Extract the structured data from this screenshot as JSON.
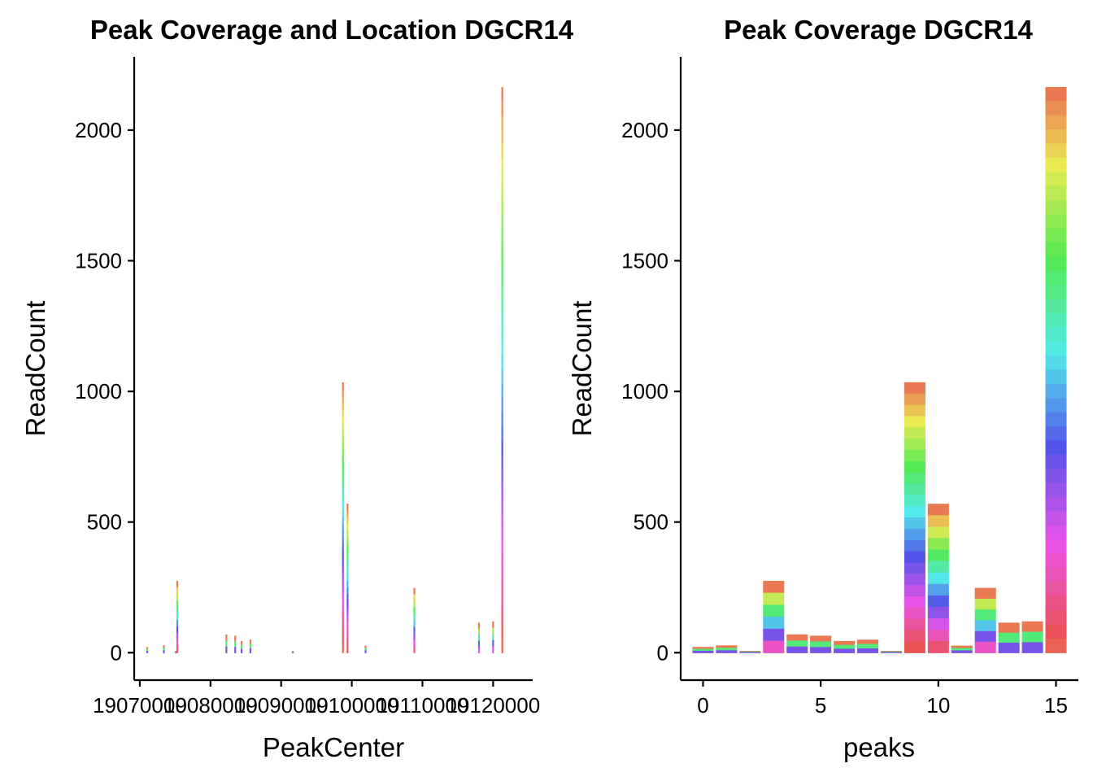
{
  "chart_data": [
    {
      "type": "bar",
      "title": "Peak Coverage and Location DGCR14",
      "xlabel": "PeakCenter",
      "ylabel": "ReadCount",
      "xlim": [
        19069200,
        19125600
      ],
      "ylim": [
        -105,
        2280
      ],
      "x_ticks": [
        19070000,
        19080000,
        19090000,
        19100000,
        19110000,
        19120000
      ],
      "x_tick_labels": [
        "19070000",
        "19080000",
        "19090000",
        "19100000",
        "19110000",
        "19120000"
      ],
      "y_ticks": [
        0,
        500,
        1000,
        1500,
        2000
      ],
      "y_tick_labels": [
        "0",
        "500",
        "1000",
        "1500",
        "2000"
      ],
      "bar_width": 250,
      "bars": [
        {
          "peak": 0,
          "x": 19071050,
          "value": 22
        },
        {
          "peak": 1,
          "x": 19073400,
          "value": 28
        },
        {
          "peak": 2,
          "x": 19075100,
          "value": 7
        },
        {
          "peak": 3,
          "x": 19075300,
          "value": 275
        },
        {
          "peak": 4,
          "x": 19082250,
          "value": 70
        },
        {
          "peak": 5,
          "x": 19083500,
          "value": 65
        },
        {
          "peak": 6,
          "x": 19084400,
          "value": 45
        },
        {
          "peak": 7,
          "x": 19085650,
          "value": 50
        },
        {
          "peak": 8,
          "x": 19091650,
          "value": 7
        },
        {
          "peak": 9,
          "x": 19098750,
          "value": 1035
        },
        {
          "peak": 10,
          "x": 19099400,
          "value": 570
        },
        {
          "peak": 11,
          "x": 19101950,
          "value": 27
        },
        {
          "peak": 12,
          "x": 19108850,
          "value": 248
        },
        {
          "peak": 13,
          "x": 19118000,
          "value": 115
        },
        {
          "peak": 14,
          "x": 19120000,
          "value": 120
        },
        {
          "peak": 15,
          "x": 19121300,
          "value": 2165
        }
      ],
      "legend": "none",
      "grid": false
    },
    {
      "type": "bar",
      "title": "Peak Coverage DGCR14",
      "xlabel": "peaks",
      "ylabel": "ReadCount",
      "xlim": [
        -0.95,
        15.95
      ],
      "ylim": [
        -105,
        2280
      ],
      "x_ticks": [
        0,
        5,
        10,
        15
      ],
      "x_tick_labels": [
        "0",
        "5",
        "10",
        "15"
      ],
      "y_ticks": [
        0,
        500,
        1000,
        1500,
        2000
      ],
      "y_tick_labels": [
        "0",
        "500",
        "1000",
        "1500",
        "2000"
      ],
      "categories": [
        0,
        1,
        2,
        3,
        4,
        5,
        6,
        7,
        8,
        9,
        10,
        11,
        12,
        13,
        14,
        15
      ],
      "values": [
        22,
        28,
        7,
        275,
        70,
        65,
        45,
        50,
        7,
        1035,
        570,
        27,
        248,
        115,
        120,
        2165
      ],
      "legend": "none",
      "grid": false
    }
  ]
}
